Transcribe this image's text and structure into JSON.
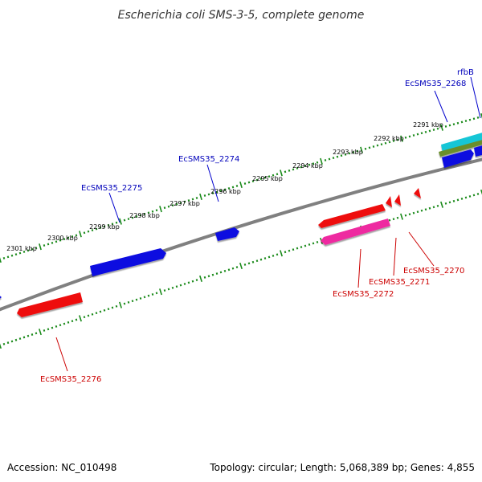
{
  "title": "Escherichia coli SMS-3-5, complete genome",
  "footer": {
    "accession": "Accession: NC_010498",
    "topology": "Topology: circular; Length: 5,068,389 bp; Genes: 4,855"
  },
  "colors": {
    "backbone": "#808080",
    "tick": "#1a8a1a",
    "label_forward": "#0000bb",
    "label_reverse": "#cc0000",
    "label_leader": "#0000cc",
    "label_leader_reverse": "#cc0000"
  },
  "scale_ticks": [
    "2291 kbp",
    "2292 kbp",
    "2293 kbp",
    "2294 kbp",
    "2295 kbp",
    "2296 kbp",
    "2297 kbp",
    "2298 kbp",
    "2299 kbp",
    "2300 kbp",
    "2301 kbp"
  ],
  "forward_labels": [
    "rfbB",
    "EcSMS35_2268",
    "EcSMS35_2274",
    "EcSMS35_2275"
  ],
  "reverse_labels": [
    "EcSMS35_2270",
    "EcSMS35_2271",
    "EcSMS35_2272",
    "EcSMS35_2276"
  ],
  "feature_colors": {
    "blue": "#1010e0",
    "red": "#ee1010",
    "magenta": "#ee2aa0",
    "cyan": "#19c6d6",
    "olive": "#6a8e2a"
  }
}
